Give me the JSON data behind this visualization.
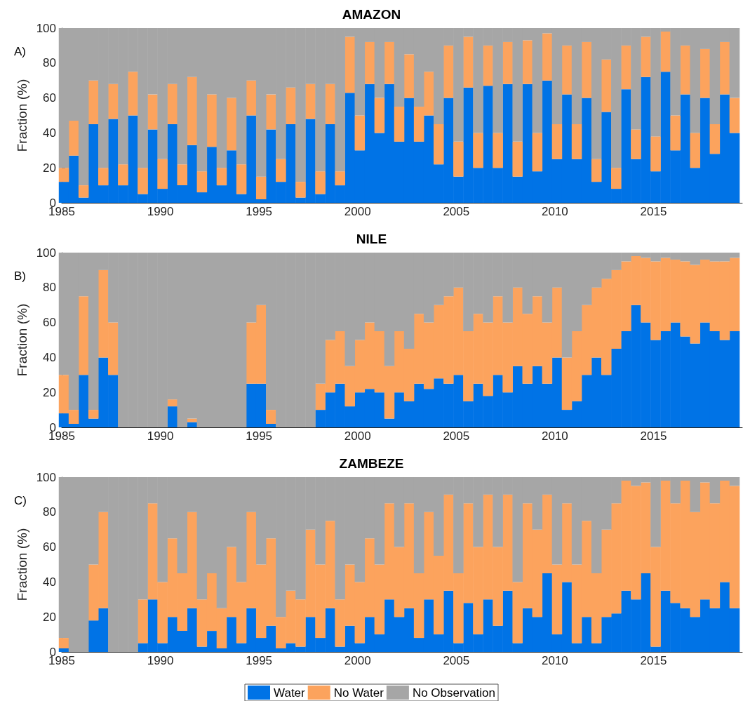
{
  "chart_data": [
    {
      "type": "bar",
      "title": "AMAZON",
      "annotations": [
        "A)"
      ],
      "ylabel": "Fraction (%)",
      "stacked": true,
      "x": [
        1985.1,
        1985.6,
        1986.1,
        1986.6,
        1987.1,
        1987.6,
        1988.1,
        1988.6,
        1989.1,
        1989.6,
        1990.1,
        1990.6,
        1991.1,
        1991.6,
        1992.1,
        1992.6,
        1993.1,
        1993.6,
        1994.1,
        1994.6,
        1995.1,
        1995.6,
        1996.1,
        1996.6,
        1997.1,
        1997.6,
        1998.1,
        1998.6,
        1999.1,
        1999.6,
        2000.1,
        2000.6,
        2001.1,
        2001.6,
        2002.1,
        2002.6,
        2003.1,
        2003.6,
        2004.1,
        2004.6,
        2005.1,
        2005.6,
        2006.1,
        2006.6,
        2007.1,
        2007.6,
        2008.1,
        2008.6,
        2009.1,
        2009.6,
        2010.1,
        2010.6,
        2011.1,
        2011.6,
        2012.1,
        2012.6,
        2013.1,
        2013.6,
        2014.1,
        2014.6,
        2015.1,
        2015.6,
        2016.1,
        2016.6,
        2017.1,
        2017.6,
        2018.1,
        2018.6,
        2019.1
      ],
      "xlim": [
        1985,
        2019.5
      ],
      "xticks": [
        1985,
        1990,
        1995,
        2000,
        2005,
        2010,
        2015
      ],
      "ylim": [
        0,
        100
      ],
      "yticks": [
        0,
        20,
        40,
        60,
        80,
        100
      ],
      "series": [
        {
          "color": "#0073e6",
          "values": [
            12,
            27,
            3,
            45,
            10,
            48,
            10,
            50,
            5,
            42,
            8,
            45,
            10,
            33,
            6,
            32,
            10,
            30,
            5,
            50,
            2,
            42,
            12,
            45,
            3,
            48,
            5,
            45,
            10,
            63,
            30,
            68,
            40,
            68,
            35,
            60,
            35,
            50,
            22,
            60,
            15,
            66,
            20,
            67,
            20,
            68,
            15,
            68,
            18,
            70,
            25,
            62,
            25,
            60,
            12,
            52,
            8,
            65,
            25,
            72,
            18,
            75,
            30,
            62,
            20,
            60,
            28,
            62,
            40
          ]
        },
        {
          "color": "#fca35d",
          "values": [
            8,
            20,
            7,
            25,
            10,
            20,
            12,
            25,
            15,
            20,
            17,
            23,
            12,
            39,
            12,
            30,
            10,
            30,
            17,
            20,
            13,
            20,
            13,
            21,
            9,
            20,
            13,
            23,
            8,
            32,
            20,
            24,
            20,
            24,
            20,
            25,
            20,
            25,
            23,
            30,
            20,
            29,
            20,
            23,
            20,
            24,
            20,
            25,
            22,
            27,
            20,
            28,
            20,
            32,
            13,
            30,
            12,
            25,
            17,
            23,
            20,
            23,
            20,
            28,
            20,
            28,
            17,
            30,
            20
          ]
        },
        {
          "color": "#a6a6a6",
          "values": [
            80,
            53,
            90,
            30,
            80,
            32,
            78,
            25,
            80,
            38,
            75,
            32,
            78,
            28,
            82,
            38,
            80,
            40,
            78,
            30,
            85,
            38,
            75,
            34,
            88,
            32,
            82,
            32,
            82,
            5,
            50,
            8,
            40,
            8,
            45,
            15,
            45,
            25,
            55,
            10,
            65,
            5,
            60,
            10,
            60,
            8,
            65,
            7,
            60,
            3,
            55,
            10,
            55,
            8,
            75,
            18,
            80,
            10,
            58,
            5,
            62,
            2,
            50,
            10,
            60,
            12,
            55,
            8,
            40
          ]
        }
      ]
    },
    {
      "type": "bar",
      "title": "NILE",
      "annotations": [
        "B)"
      ],
      "ylabel": "Fraction (%)",
      "stacked": true,
      "x": [
        1985.1,
        1985.6,
        1986.1,
        1986.6,
        1987.1,
        1987.6,
        1988.1,
        1988.6,
        1989.1,
        1989.6,
        1990.1,
        1990.6,
        1991.1,
        1991.6,
        1992.1,
        1992.6,
        1993.1,
        1993.6,
        1994.1,
        1994.6,
        1995.1,
        1995.6,
        1996.1,
        1996.6,
        1997.1,
        1997.6,
        1998.1,
        1998.6,
        1999.1,
        1999.6,
        2000.1,
        2000.6,
        2001.1,
        2001.6,
        2002.1,
        2002.6,
        2003.1,
        2003.6,
        2004.1,
        2004.6,
        2005.1,
        2005.6,
        2006.1,
        2006.6,
        2007.1,
        2007.6,
        2008.1,
        2008.6,
        2009.1,
        2009.6,
        2010.1,
        2010.6,
        2011.1,
        2011.6,
        2012.1,
        2012.6,
        2013.1,
        2013.6,
        2014.1,
        2014.6,
        2015.1,
        2015.6,
        2016.1,
        2016.6,
        2017.1,
        2017.6,
        2018.1,
        2018.6,
        2019.1
      ],
      "xlim": [
        1985,
        2019.5
      ],
      "xticks": [
        1985,
        1990,
        1995,
        2000,
        2005,
        2010,
        2015
      ],
      "ylim": [
        0,
        100
      ],
      "yticks": [
        0,
        20,
        40,
        60,
        80,
        100
      ],
      "series": [
        {
          "color": "#0073e6",
          "values": [
            8,
            2,
            30,
            5,
            40,
            30,
            0,
            0,
            0,
            0,
            0,
            12,
            0,
            3,
            0,
            0,
            0,
            0,
            0,
            25,
            25,
            2,
            0,
            0,
            0,
            0,
            10,
            20,
            25,
            12,
            20,
            22,
            20,
            5,
            20,
            15,
            25,
            22,
            28,
            25,
            30,
            15,
            25,
            18,
            30,
            20,
            35,
            25,
            35,
            25,
            40,
            10,
            15,
            30,
            40,
            30,
            45,
            55,
            70,
            60,
            50,
            55,
            60,
            52,
            48,
            60,
            55,
            50,
            55
          ]
        },
        {
          "color": "#fca35d",
          "values": [
            22,
            8,
            45,
            5,
            50,
            30,
            0,
            0,
            0,
            0,
            0,
            4,
            0,
            2,
            0,
            0,
            0,
            0,
            0,
            35,
            45,
            8,
            0,
            0,
            0,
            0,
            15,
            30,
            30,
            23,
            30,
            38,
            35,
            30,
            35,
            30,
            40,
            38,
            42,
            50,
            50,
            40,
            40,
            42,
            45,
            40,
            45,
            40,
            40,
            35,
            40,
            30,
            40,
            40,
            40,
            55,
            45,
            40,
            28,
            37,
            45,
            42,
            36,
            43,
            45,
            36,
            40,
            45,
            42
          ]
        },
        {
          "color": "#a6a6a6",
          "values": [
            70,
            90,
            25,
            90,
            10,
            40,
            100,
            100,
            100,
            100,
            100,
            84,
            100,
            95,
            100,
            100,
            100,
            100,
            100,
            40,
            30,
            90,
            100,
            100,
            100,
            100,
            75,
            50,
            45,
            65,
            50,
            40,
            45,
            65,
            45,
            55,
            35,
            40,
            30,
            25,
            20,
            45,
            35,
            40,
            25,
            40,
            20,
            35,
            25,
            40,
            20,
            60,
            45,
            30,
            20,
            15,
            10,
            5,
            2,
            3,
            5,
            3,
            4,
            5,
            7,
            4,
            5,
            5,
            3
          ]
        }
      ]
    },
    {
      "type": "bar",
      "title": "ZAMBEZE",
      "annotations": [
        "C)"
      ],
      "ylabel": "Fraction (%)",
      "stacked": true,
      "legend": "bottom",
      "x": [
        1985.1,
        1985.6,
        1986.1,
        1986.6,
        1987.1,
        1987.6,
        1988.1,
        1988.6,
        1989.1,
        1989.6,
        1990.1,
        1990.6,
        1991.1,
        1991.6,
        1992.1,
        1992.6,
        1993.1,
        1993.6,
        1994.1,
        1994.6,
        1995.1,
        1995.6,
        1996.1,
        1996.6,
        1997.1,
        1997.6,
        1998.1,
        1998.6,
        1999.1,
        1999.6,
        2000.1,
        2000.6,
        2001.1,
        2001.6,
        2002.1,
        2002.6,
        2003.1,
        2003.6,
        2004.1,
        2004.6,
        2005.1,
        2005.6,
        2006.1,
        2006.6,
        2007.1,
        2007.6,
        2008.1,
        2008.6,
        2009.1,
        2009.6,
        2010.1,
        2010.6,
        2011.1,
        2011.6,
        2012.1,
        2012.6,
        2013.1,
        2013.6,
        2014.1,
        2014.6,
        2015.1,
        2015.6,
        2016.1,
        2016.6,
        2017.1,
        2017.6,
        2018.1,
        2018.6,
        2019.1
      ],
      "xlim": [
        1985,
        2019.5
      ],
      "xticks": [
        1985,
        1990,
        1995,
        2000,
        2005,
        2010,
        2015
      ],
      "ylim": [
        0,
        100
      ],
      "yticks": [
        0,
        20,
        40,
        60,
        80,
        100
      ],
      "series": [
        {
          "name": "Water",
          "color": "#0073e6",
          "values": [
            2,
            0,
            0,
            18,
            25,
            0,
            0,
            0,
            5,
            30,
            5,
            20,
            12,
            25,
            3,
            12,
            2,
            20,
            5,
            25,
            8,
            15,
            2,
            5,
            3,
            20,
            8,
            25,
            3,
            15,
            5,
            20,
            10,
            30,
            20,
            25,
            8,
            30,
            10,
            35,
            5,
            28,
            10,
            30,
            15,
            35,
            5,
            25,
            20,
            45,
            10,
            40,
            5,
            20,
            5,
            20,
            22,
            35,
            30,
            45,
            3,
            35,
            28,
            25,
            20,
            30,
            25,
            40,
            25
          ]
        },
        {
          "name": "No Water",
          "color": "#fca35d",
          "values": [
            6,
            0,
            0,
            32,
            55,
            0,
            0,
            0,
            25,
            55,
            35,
            45,
            33,
            55,
            27,
            33,
            23,
            40,
            35,
            55,
            42,
            50,
            18,
            30,
            27,
            50,
            42,
            50,
            27,
            35,
            35,
            45,
            40,
            55,
            40,
            60,
            37,
            50,
            45,
            55,
            40,
            57,
            50,
            60,
            45,
            55,
            35,
            60,
            50,
            45,
            40,
            45,
            45,
            55,
            40,
            50,
            63,
            63,
            65,
            52,
            57,
            63,
            57,
            73,
            60,
            67,
            60,
            58,
            70
          ]
        },
        {
          "name": "No Observation",
          "color": "#a6a6a6",
          "values": [
            92,
            100,
            100,
            50,
            20,
            100,
            100,
            100,
            70,
            15,
            60,
            35,
            55,
            20,
            70,
            55,
            75,
            40,
            60,
            20,
            50,
            35,
            80,
            65,
            70,
            30,
            50,
            25,
            70,
            50,
            60,
            35,
            50,
            15,
            40,
            15,
            55,
            20,
            45,
            10,
            55,
            15,
            40,
            10,
            40,
            10,
            60,
            15,
            30,
            10,
            50,
            15,
            50,
            25,
            55,
            30,
            15,
            2,
            5,
            3,
            40,
            2,
            15,
            2,
            20,
            3,
            15,
            2,
            5
          ]
        }
      ]
    }
  ]
}
